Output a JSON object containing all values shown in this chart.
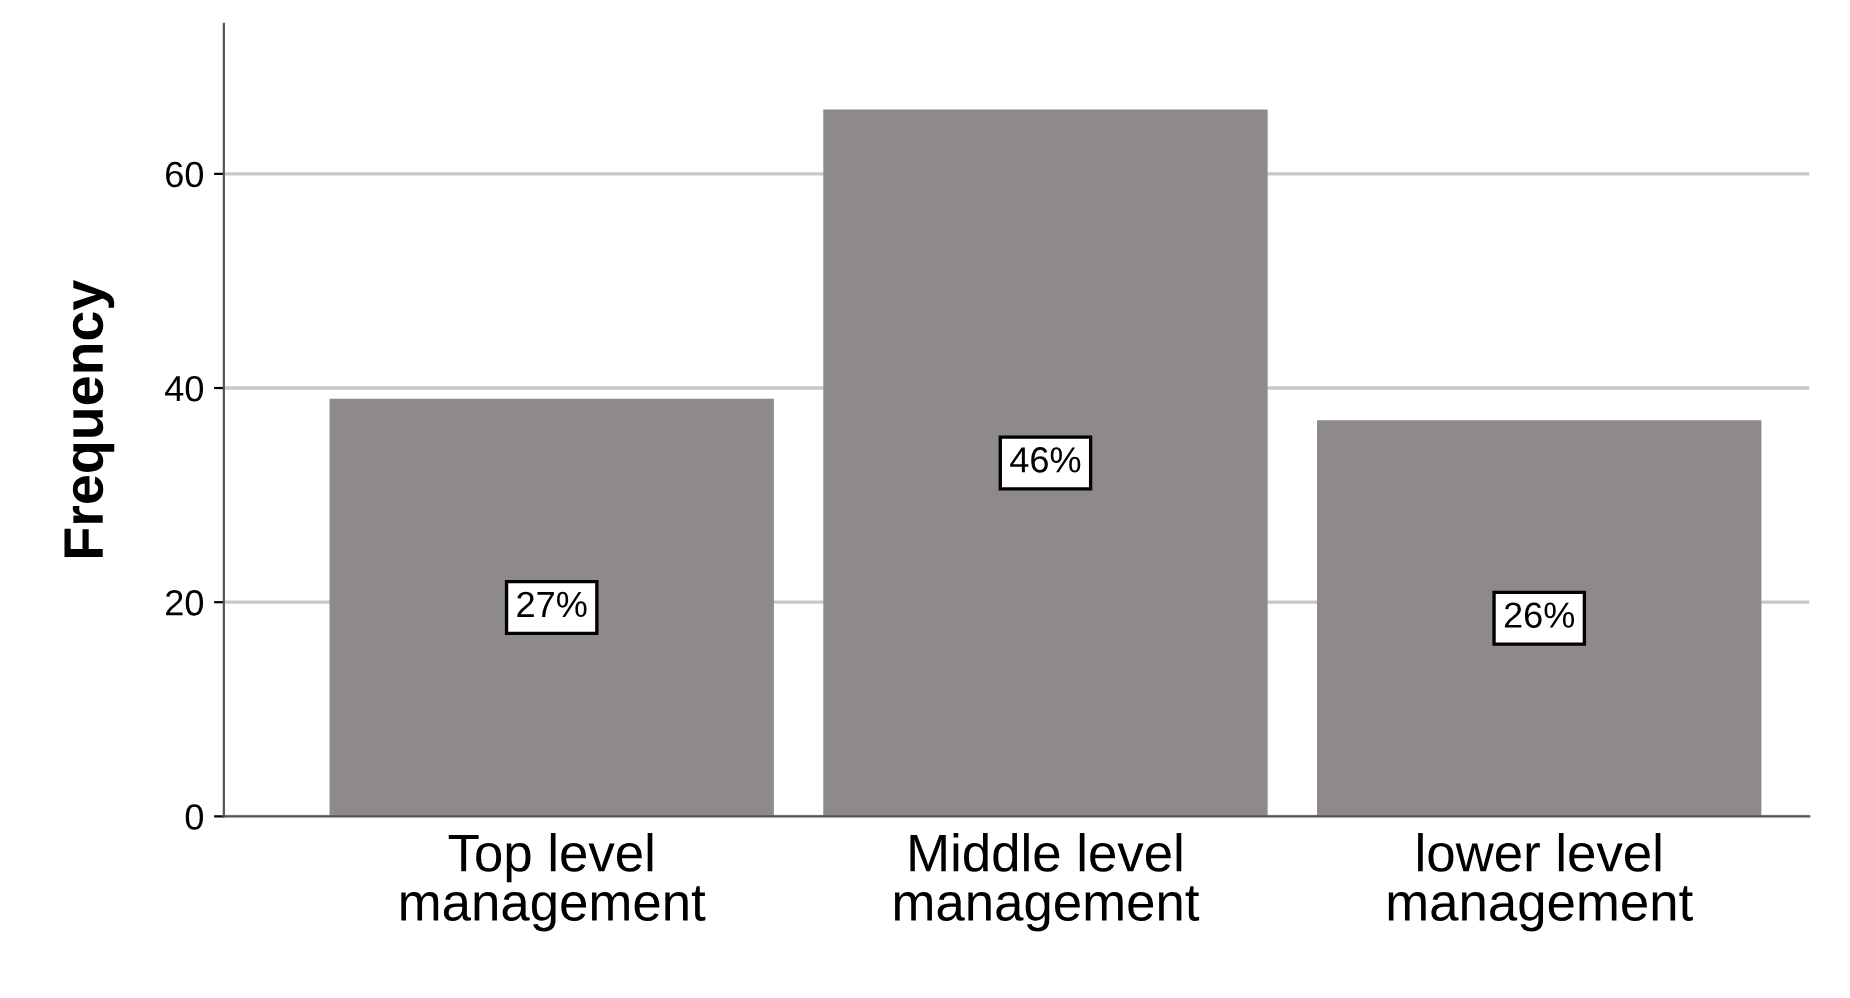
{
  "chart_data": {
    "type": "bar",
    "ylabel": "Frequency",
    "categories": [
      "Top level\nmanagement",
      "Middle level\nmanagement",
      "lower level\nmanagement"
    ],
    "values": [
      39,
      66,
      37
    ],
    "color": "#8f8a8a",
    "annotations": [
      "27%",
      "46%",
      "26%"
    ],
    "ylim": [
      0,
      74
    ],
    "yticks": [
      0,
      20,
      40,
      60
    ],
    "grid": "y",
    "legend": false
  }
}
